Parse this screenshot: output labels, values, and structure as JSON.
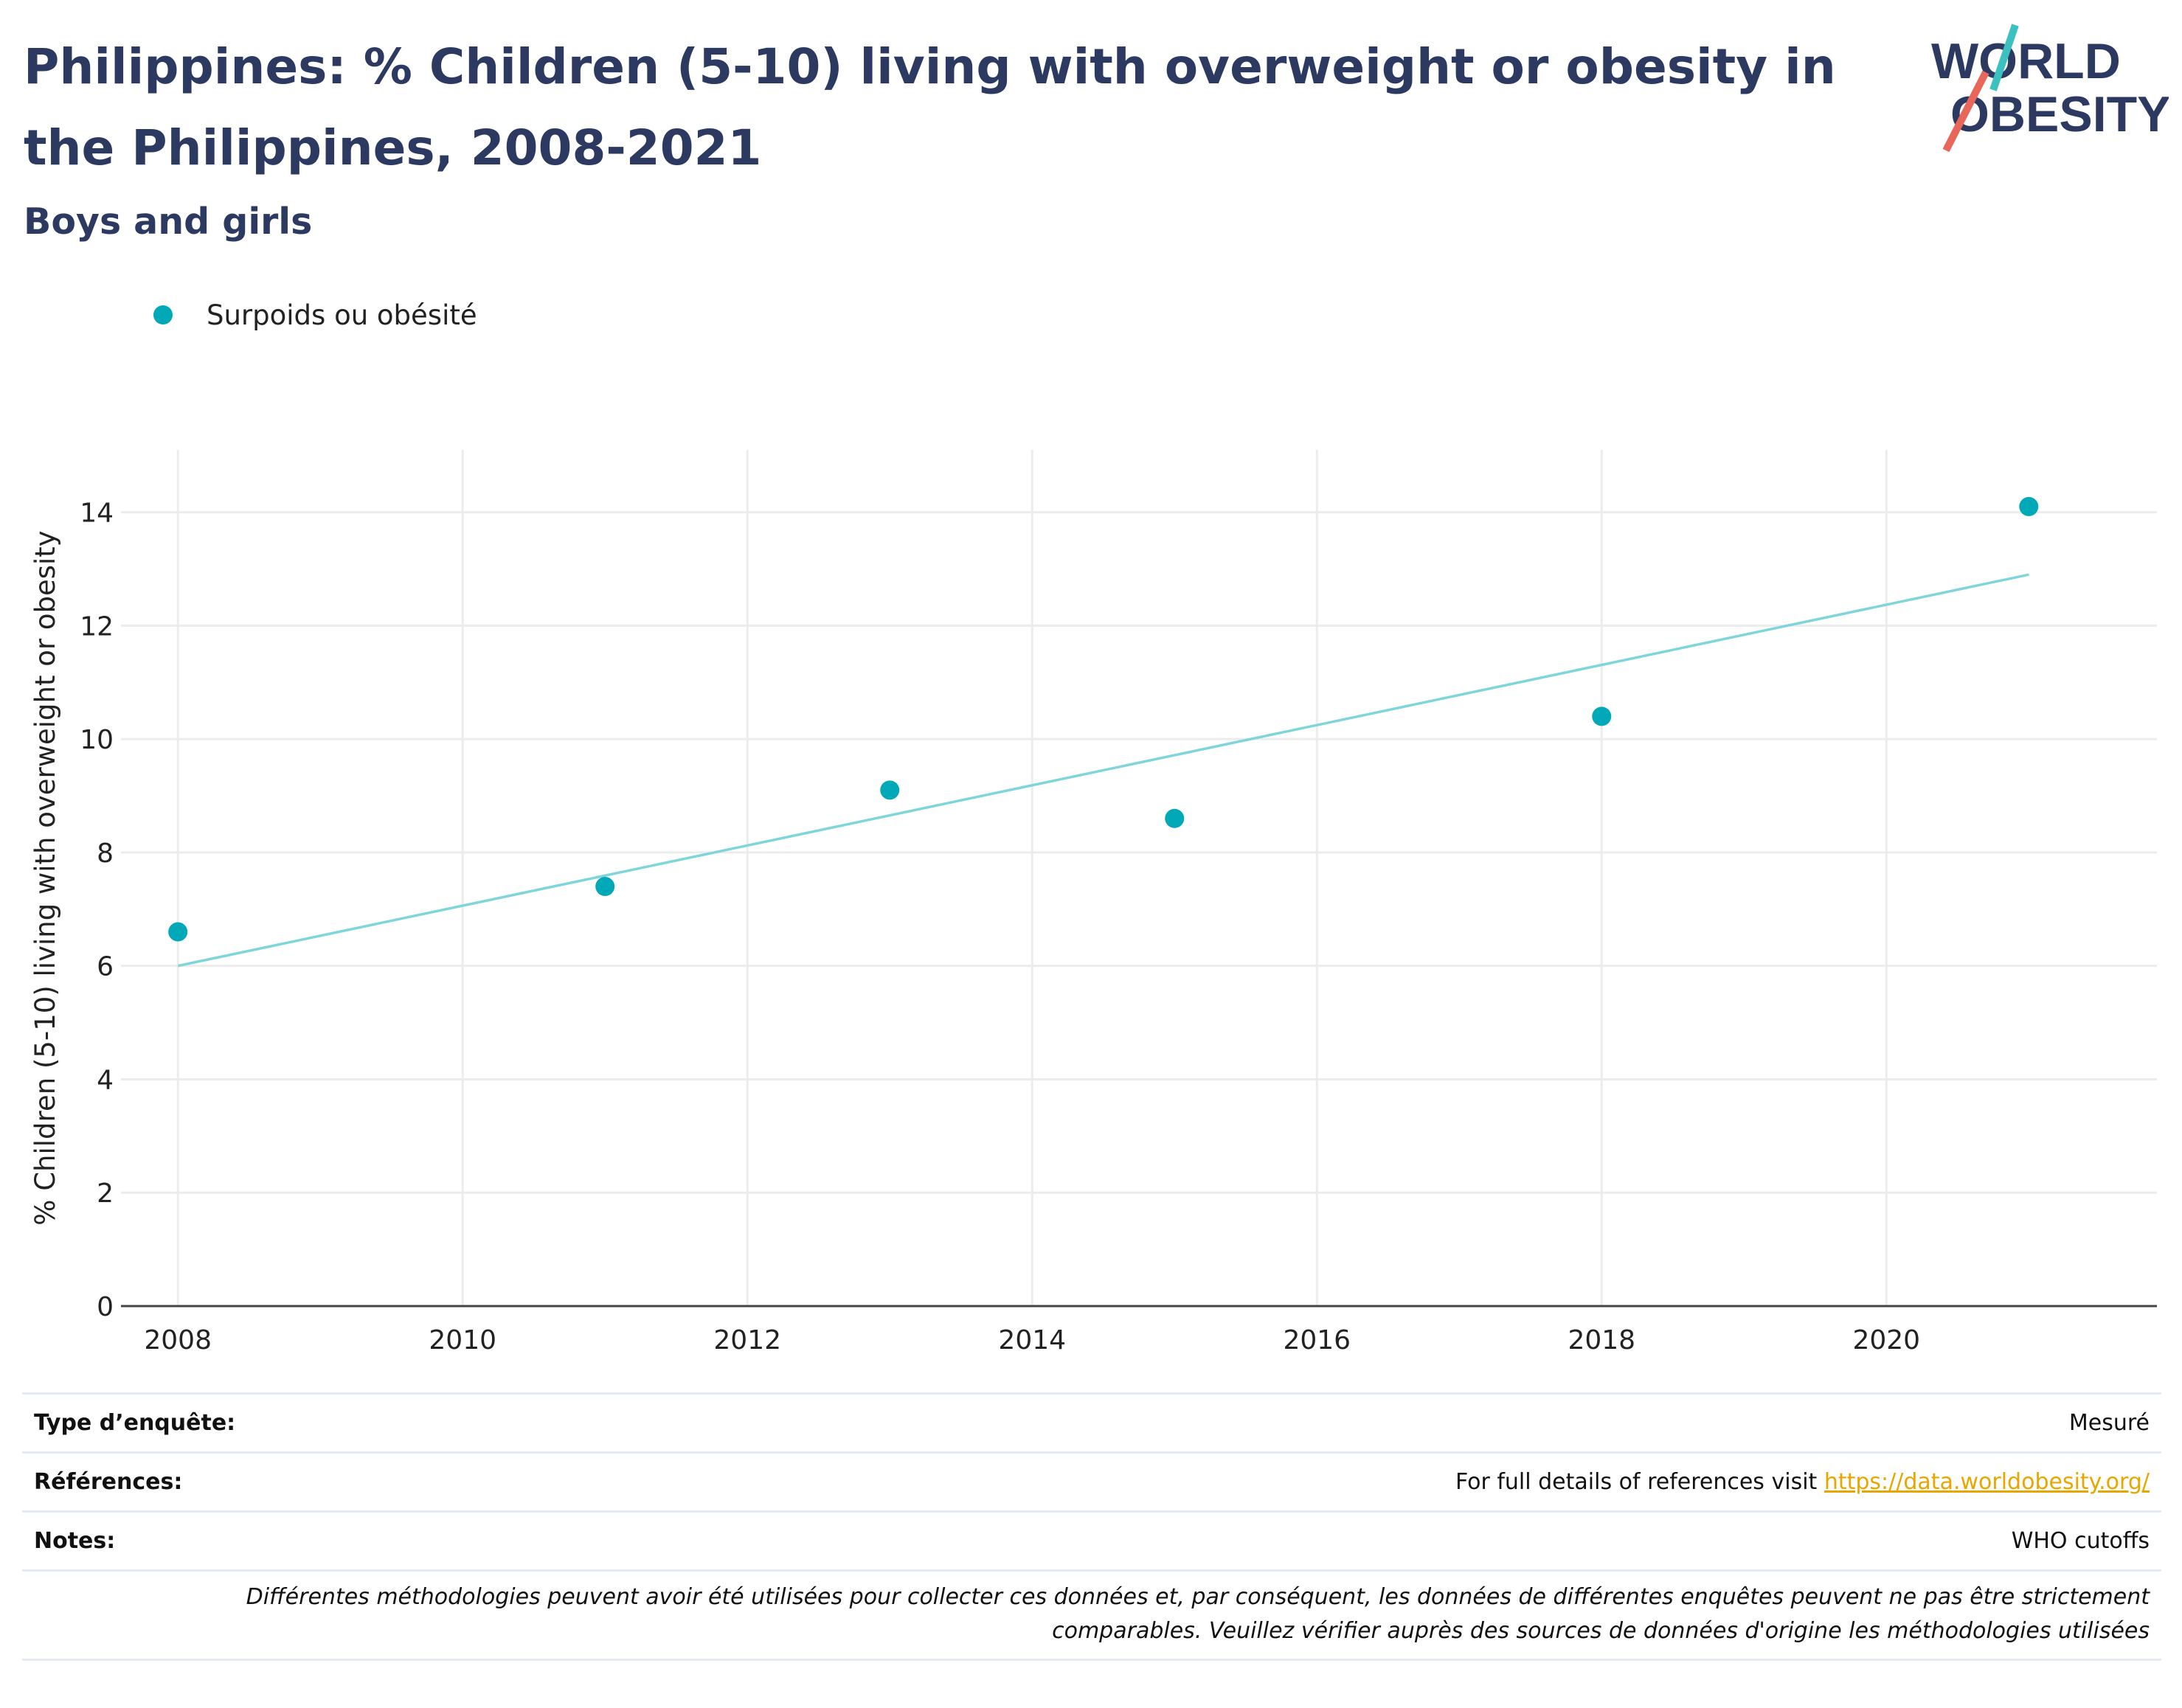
{
  "header": {
    "title": "Philippines: % Children (5-10) living with overweight or obesity in the Philippines, 2008-2021",
    "subtitle": "Boys and girls"
  },
  "logo": {
    "line1": "WORLD",
    "line2": "OBESITY",
    "slash_top_color": "#3cc0c0",
    "slash_bottom_color": "#e8665a"
  },
  "colors": {
    "title": "#2c3a62",
    "point": "#00a8b8",
    "trend": "#7fd6da",
    "grid": "#ececec",
    "link": "#e8a600"
  },
  "chart_data": {
    "type": "scatter",
    "title": "Philippines: % Children (5-10) living with overweight or obesity in the Philippines, 2008-2021",
    "subtitle": "Boys and girls",
    "ylabel": "% Children (5-10) living with overweight or obesity",
    "xlabel": "",
    "xlim": [
      2007.6,
      2021.9
    ],
    "ylim": [
      0,
      15.1
    ],
    "xticks": [
      2008,
      2010,
      2012,
      2014,
      2016,
      2018,
      2020
    ],
    "yticks": [
      0,
      2,
      4,
      6,
      8,
      10,
      12,
      14
    ],
    "grid": true,
    "legend_position": "top-left",
    "series": [
      {
        "name": "Surpoids ou obésité",
        "x": [
          2008,
          2011,
          2013,
          2015,
          2018,
          2021
        ],
        "y": [
          6.6,
          7.4,
          9.1,
          8.6,
          10.4,
          14.1
        ]
      }
    ],
    "trendline": {
      "x": [
        2008,
        2021
      ],
      "y": [
        6.0,
        12.9
      ]
    }
  },
  "info": {
    "rows": [
      {
        "label": "Type d’enquête:",
        "value": "Mesuré"
      },
      {
        "label": "Références:",
        "value": "For full details of references visit ",
        "link": "https://data.worldobesity.org/"
      },
      {
        "label": "Notes:",
        "value": "WHO cutoffs"
      }
    ],
    "disclaimer_line1": "Différentes méthodologies peuvent avoir été utilisées pour collecter ces données et, par conséquent, les données de différentes enquêtes peuvent ne pas être strictement",
    "disclaimer_line2": "comparables. Veuillez vérifier auprès des sources de données d'origine les méthodologies utilisées"
  }
}
